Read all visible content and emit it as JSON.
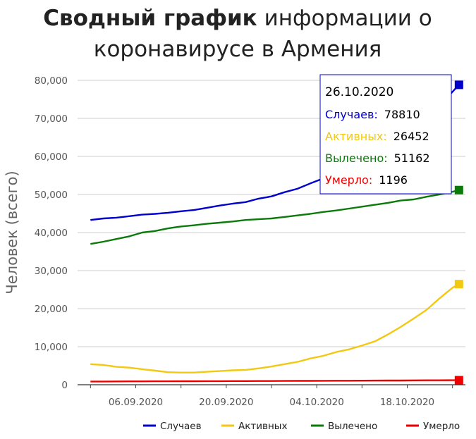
{
  "title": {
    "bold": "Сводный график",
    "rest": "информации о",
    "line2": "коронавирусе в Армения"
  },
  "chart_data": {
    "type": "line",
    "ylabel": "Человек (всего)",
    "ylim": [
      0,
      80000
    ],
    "yticks": [
      0,
      10000,
      20000,
      30000,
      40000,
      50000,
      60000,
      70000,
      80000
    ],
    "ytick_labels": [
      "0",
      "10,000",
      "20,000",
      "30,000",
      "40,000",
      "50,000",
      "60,000",
      "70,000",
      "80,000"
    ],
    "xlim": [
      "2020-08-28",
      "2020-10-27"
    ],
    "xtick_dates": [
      "2020-09-06",
      "2020-09-20",
      "2020-10-04",
      "2020-10-18"
    ],
    "xtick_labels": [
      "06.09.2020",
      "20.09.2020",
      "04.10.2020",
      "18.10.2020"
    ],
    "grid": true,
    "legend_position": "bottom-right",
    "x": [
      "2020-08-30",
      "2020-09-01",
      "2020-09-03",
      "2020-09-05",
      "2020-09-07",
      "2020-09-09",
      "2020-09-11",
      "2020-09-13",
      "2020-09-15",
      "2020-09-17",
      "2020-09-19",
      "2020-09-21",
      "2020-09-23",
      "2020-09-25",
      "2020-09-27",
      "2020-09-29",
      "2020-10-01",
      "2020-10-03",
      "2020-10-05",
      "2020-10-07",
      "2020-10-09",
      "2020-10-11",
      "2020-10-13",
      "2020-10-15",
      "2020-10-17",
      "2020-10-19",
      "2020-10-21",
      "2020-10-23",
      "2020-10-25",
      "2020-10-26"
    ],
    "series": [
      {
        "name": "Случаев",
        "color": "#0000cc",
        "values": [
          43300,
          43700,
          43900,
          44300,
          44700,
          44900,
          45200,
          45600,
          45900,
          46500,
          47100,
          47600,
          48000,
          48900,
          49500,
          50600,
          51500,
          52900,
          54200,
          55600,
          57000,
          58500,
          60000,
          62000,
          64600,
          67000,
          69900,
          73300,
          77000,
          78810
        ]
      },
      {
        "name": "Активных",
        "color": "#f2c811",
        "values": [
          5400,
          5200,
          4700,
          4500,
          4100,
          3700,
          3300,
          3200,
          3200,
          3400,
          3600,
          3800,
          3900,
          4300,
          4800,
          5400,
          6000,
          6900,
          7600,
          8600,
          9300,
          10300,
          11400,
          13200,
          15200,
          17400,
          19700,
          22700,
          25500,
          26452
        ]
      },
      {
        "name": "Вылечено",
        "color": "#0b7a0b",
        "values": [
          37000,
          37600,
          38300,
          39000,
          40000,
          40400,
          41100,
          41600,
          41900,
          42300,
          42600,
          42900,
          43300,
          43500,
          43700,
          44100,
          44500,
          44900,
          45400,
          45800,
          46300,
          46800,
          47300,
          47800,
          48400,
          48700,
          49400,
          50000,
          50700,
          51162
        ]
      },
      {
        "name": "Умерло",
        "color": "#ee0000",
        "values": [
          850,
          860,
          870,
          880,
          890,
          900,
          910,
          920,
          930,
          940,
          950,
          960,
          970,
          980,
          990,
          1000,
          1010,
          1020,
          1030,
          1050,
          1060,
          1080,
          1090,
          1110,
          1120,
          1140,
          1160,
          1170,
          1190,
          1196
        ]
      }
    ],
    "tooltip": {
      "date": "26.10.2020",
      "rows": [
        {
          "label": "Случаев:",
          "value": "78810",
          "color": "#0000cc"
        },
        {
          "label": "Активных:",
          "value": "26452",
          "color": "#f2c811"
        },
        {
          "label": "Вылечено:",
          "value": "51162",
          "color": "#0b7a0b"
        },
        {
          "label": "Умерло:",
          "value": "1196",
          "color": "#ee0000"
        }
      ]
    }
  }
}
